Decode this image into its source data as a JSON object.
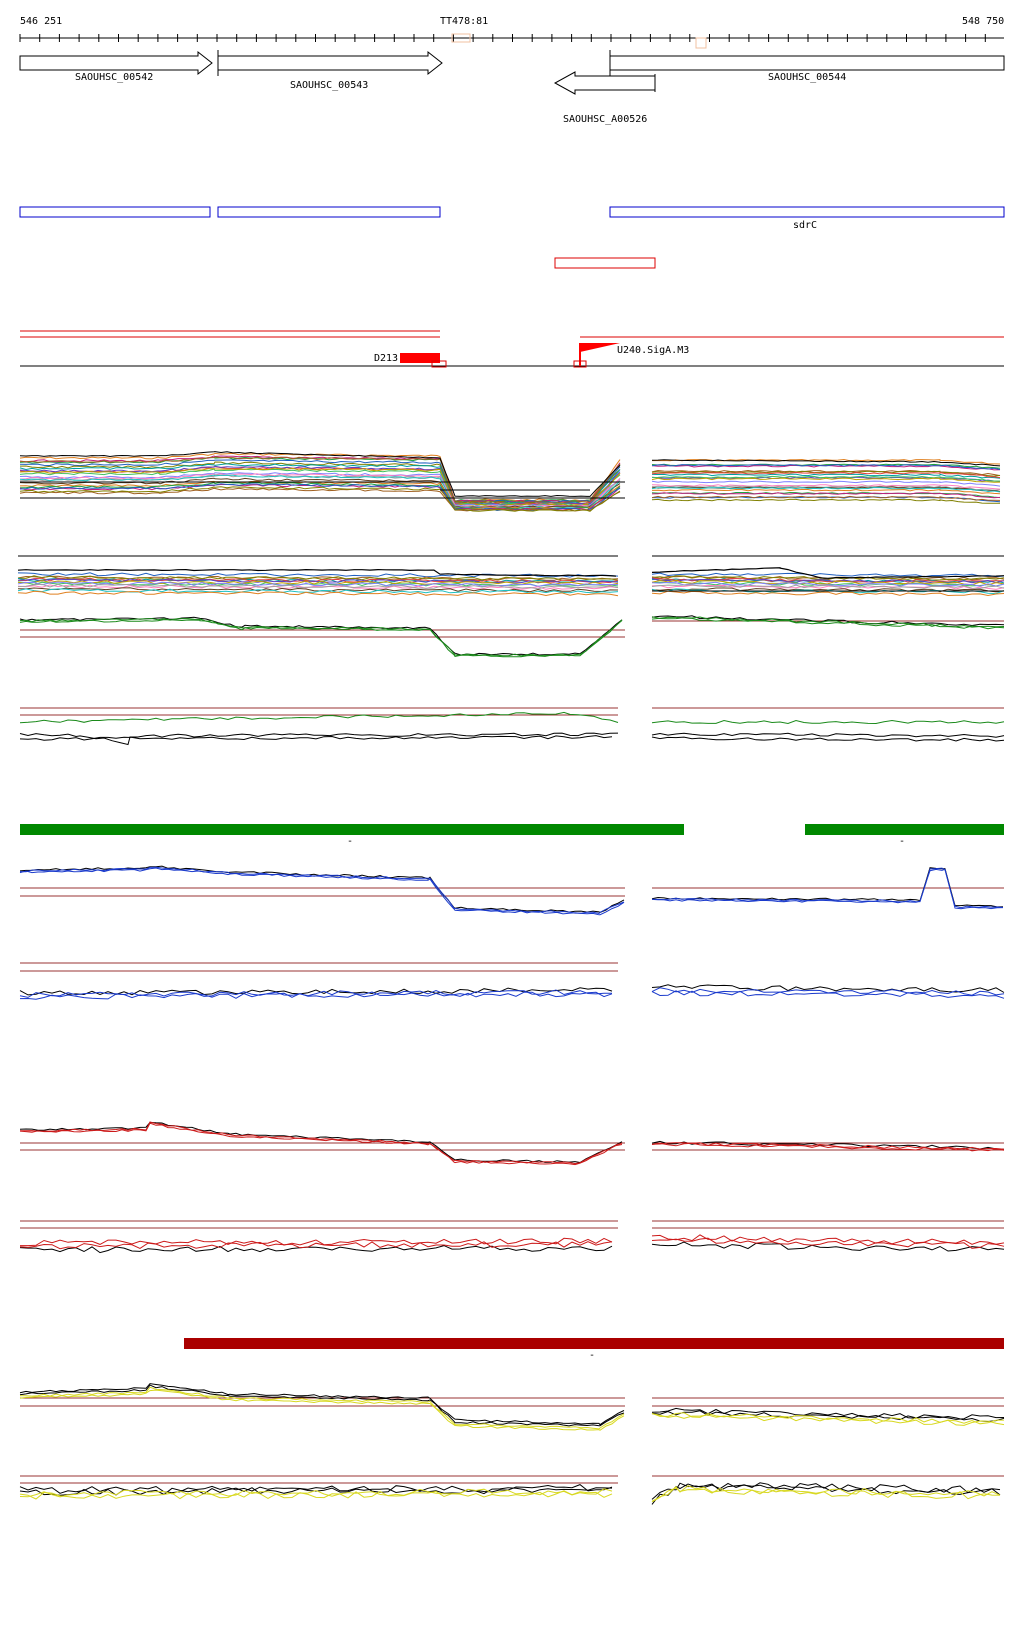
{
  "ruler": {
    "start_label": "546 251",
    "center_label": "TT478:81",
    "end_label": "548 750"
  },
  "genes": [
    {
      "id": "SAOUHSC_00542",
      "label": "SAOUHSC_00542",
      "strand": "+"
    },
    {
      "id": "SAOUHSC_00543",
      "label": "SAOUHSC_00543",
      "strand": "+"
    },
    {
      "id": "SAOUHSC_A00526",
      "label": "SAOUHSC_A00526",
      "strand": "-"
    },
    {
      "id": "SAOUHSC_00544",
      "label": "SAOUHSC_00544",
      "strand": "+"
    }
  ],
  "annotations": {
    "blue_feature_label": "sdrC"
  },
  "regulatory": {
    "terminator_label": "D213",
    "promoter_label": "U240.SigA.M3"
  },
  "bars": {
    "green_label": "-",
    "dark_red_label": "-"
  },
  "colors": {
    "blue_box": "#0000cc",
    "red_box": "#dd0000",
    "green_bar": "#008800",
    "dark_red_bar": "#aa0000",
    "series_green": "#1a8a1a",
    "series_blue": "#1a3acc",
    "series_red": "#cc1a1a",
    "series_yellow": "#d8d820",
    "threshold": "#993333"
  }
}
